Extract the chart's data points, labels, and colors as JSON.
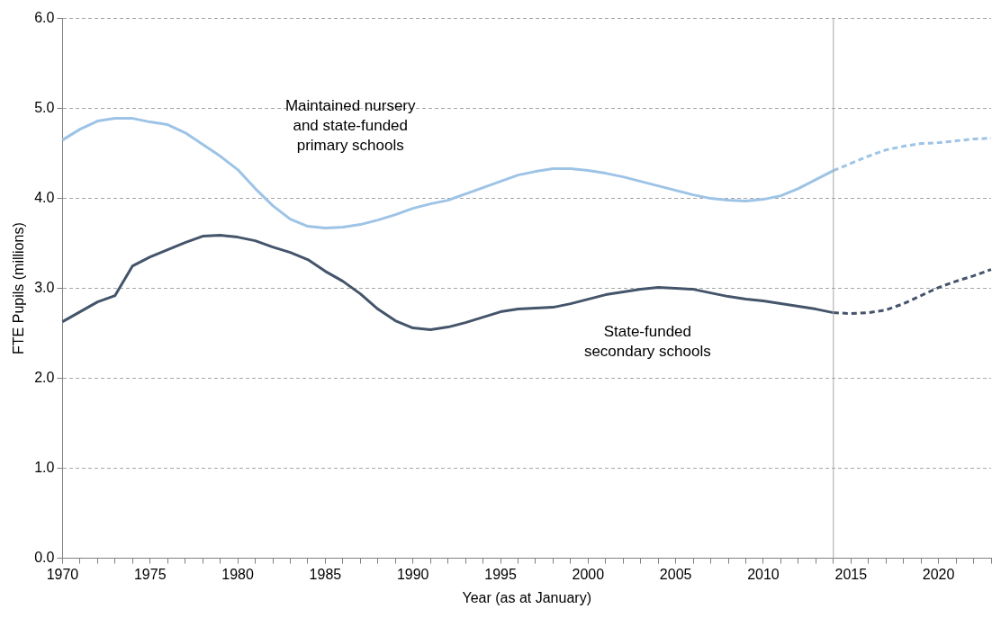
{
  "chart_data": {
    "type": "line",
    "xlabel": "Year (as at January)",
    "ylabel": "FTE Pupils (millions)",
    "xlim": [
      1970,
      2023
    ],
    "xticks": [
      1970,
      {
        "value": 1971,
        "label": null
      },
      {
        "value": 1972,
        "label": null
      },
      {
        "value": 1973,
        "label": null
      },
      {
        "value": 1974,
        "label": null
      },
      1975,
      {
        "value": 1976,
        "label": null
      },
      {
        "value": 1977,
        "label": null
      },
      {
        "value": 1978,
        "label": null
      },
      {
        "value": 1979,
        "label": null
      },
      1980,
      {
        "value": 1981,
        "label": null
      },
      {
        "value": 1982,
        "label": null
      },
      {
        "value": 1983,
        "label": null
      },
      {
        "value": 1984,
        "label": null
      },
      1985,
      {
        "value": 1986,
        "label": null
      },
      {
        "value": 1987,
        "label": null
      },
      {
        "value": 1988,
        "label": null
      },
      {
        "value": 1989,
        "label": null
      },
      1990,
      {
        "value": 1991,
        "label": null
      },
      {
        "value": 1992,
        "label": null
      },
      {
        "value": 1993,
        "label": null
      },
      {
        "value": 1994,
        "label": null
      },
      1995,
      {
        "value": 1996,
        "label": null
      },
      {
        "value": 1997,
        "label": null
      },
      {
        "value": 1998,
        "label": null
      },
      {
        "value": 1999,
        "label": null
      },
      2000,
      {
        "value": 2001,
        "label": null
      },
      {
        "value": 2002,
        "label": null
      },
      {
        "value": 2003,
        "label": null
      },
      {
        "value": 2004,
        "label": null
      },
      2005,
      {
        "value": 2006,
        "label": null
      },
      {
        "value": 2007,
        "label": null
      },
      {
        "value": 2008,
        "label": null
      },
      {
        "value": 2009,
        "label": null
      },
      2010,
      {
        "value": 2011,
        "label": null
      },
      {
        "value": 2012,
        "label": null
      },
      {
        "value": 2013,
        "label": null
      },
      {
        "value": 2014,
        "label": null
      },
      2015,
      {
        "value": 2016,
        "label": null
      },
      {
        "value": 2017,
        "label": null
      },
      {
        "value": 2018,
        "label": null
      },
      {
        "value": 2019,
        "label": null
      },
      2020,
      {
        "value": 2021,
        "label": null
      },
      {
        "value": 2022,
        "label": null
      },
      {
        "value": 2023,
        "label": null
      }
    ],
    "ylim": [
      0,
      6
    ],
    "yticks": [
      {
        "value": 0,
        "label": "0.0"
      },
      {
        "value": 1,
        "label": "1.0"
      },
      {
        "value": 2,
        "label": "2.0"
      },
      {
        "value": 3,
        "label": "3.0"
      },
      {
        "value": 4,
        "label": "4.0"
      },
      {
        "value": 5,
        "label": "5.0"
      },
      {
        "value": 6,
        "label": "6.0"
      }
    ],
    "grid": "y",
    "legend": false,
    "marker": "none",
    "series": [
      {
        "color": "#9dc3e6",
        "line_style": "solid",
        "x": [
          1970,
          1971,
          1972,
          1973,
          1974,
          1975,
          1976,
          1977,
          1978,
          1979,
          1980,
          1981,
          1982,
          1983,
          1984,
          1985,
          1986,
          1987,
          1988,
          1989,
          1990,
          1991,
          1992,
          1993,
          1994,
          1995,
          1996,
          1997,
          1998,
          1999,
          2000,
          2001,
          2002,
          2003,
          2004,
          2005,
          2006,
          2007,
          2008,
          2009,
          2010,
          2011,
          2012,
          2013,
          2014
        ],
        "values": [
          4.65,
          4.77,
          4.86,
          4.89,
          4.89,
          4.85,
          4.82,
          4.73,
          4.6,
          4.47,
          4.32,
          4.11,
          3.92,
          3.77,
          3.69,
          3.67,
          3.68,
          3.71,
          3.76,
          3.82,
          3.89,
          3.94,
          3.98,
          4.05,
          4.12,
          4.19,
          4.26,
          4.3,
          4.33,
          4.33,
          4.31,
          4.28,
          4.24,
          4.19,
          4.14,
          4.09,
          4.04,
          4.0,
          3.98,
          3.97,
          3.99,
          4.03,
          4.11,
          4.21,
          4.31
        ]
      },
      {
        "color": "#9dc3e6",
        "line_style": "dashed",
        "x": [
          2014,
          2015,
          2016,
          2017,
          2018,
          2019,
          2020,
          2021,
          2022,
          2023
        ],
        "values": [
          4.31,
          4.39,
          4.47,
          4.54,
          4.58,
          4.61,
          4.62,
          4.64,
          4.66,
          4.67
        ]
      },
      {
        "color": "#44546a",
        "line_style": "solid",
        "x": [
          1970,
          1971,
          1972,
          1973,
          1974,
          1975,
          1976,
          1977,
          1978,
          1979,
          1980,
          1981,
          1982,
          1983,
          1984,
          1985,
          1986,
          1987,
          1988,
          1989,
          1990,
          1991,
          1992,
          1993,
          1994,
          1995,
          1996,
          1997,
          1998,
          1999,
          2000,
          2001,
          2002,
          2003,
          2004,
          2005,
          2006,
          2007,
          2008,
          2009,
          2010,
          2011,
          2012,
          2013,
          2014
        ],
        "values": [
          2.63,
          2.74,
          2.85,
          2.92,
          3.25,
          3.35,
          3.43,
          3.51,
          3.58,
          3.59,
          3.57,
          3.53,
          3.46,
          3.4,
          3.32,
          3.19,
          3.08,
          2.94,
          2.77,
          2.64,
          2.56,
          2.54,
          2.57,
          2.62,
          2.68,
          2.74,
          2.77,
          2.78,
          2.79,
          2.83,
          2.88,
          2.93,
          2.96,
          2.99,
          3.01,
          3.0,
          2.99,
          2.95,
          2.91,
          2.88,
          2.86,
          2.83,
          2.8,
          2.77,
          2.73
        ]
      },
      {
        "color": "#44546a",
        "line_style": "dashed",
        "x": [
          2014,
          2015,
          2016,
          2017,
          2018,
          2019,
          2020,
          2021,
          2022,
          2023
        ],
        "values": [
          2.73,
          2.72,
          2.73,
          2.76,
          2.83,
          2.92,
          3.01,
          3.08,
          3.14,
          3.21
        ]
      }
    ],
    "ref_lines": [
      {
        "axis": "x",
        "value": 2014,
        "color": "#a6a6a6"
      }
    ],
    "annotations": [
      "Maintained nursery\nand state-funded\nprimary schools",
      "State-funded\nsecondary schools"
    ]
  }
}
